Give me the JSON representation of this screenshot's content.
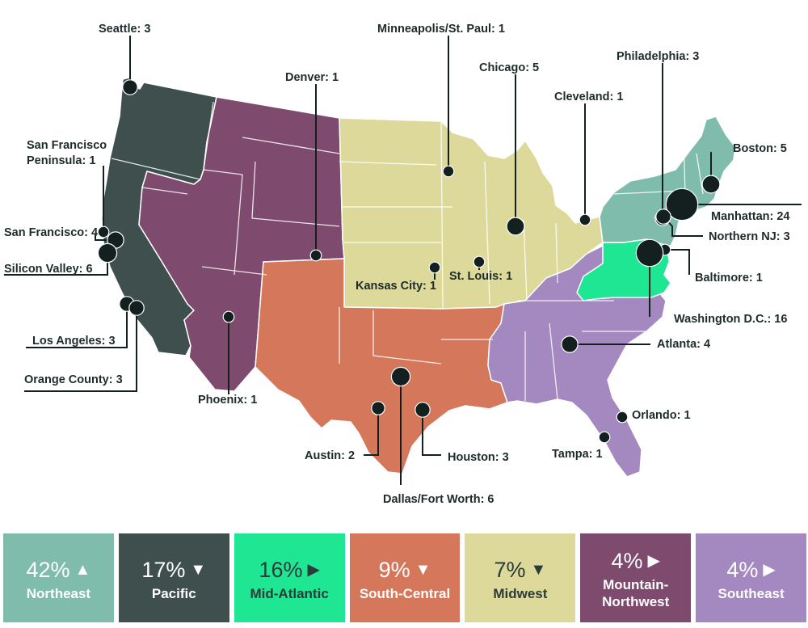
{
  "colors": {
    "northeast": "#7fbcab",
    "pacific": "#3e4f4d",
    "mid_atlantic": "#1ee692",
    "south_central": "#d4775b",
    "midwest": "#dcd99b",
    "mountain_northwest": "#7e4a6d",
    "southeast": "#a488c0",
    "marker": "#13201f"
  },
  "cities": [
    {
      "name": "Seattle: 3",
      "count": 3
    },
    {
      "name": "Minneapolis/St. Paul: 1",
      "count": 1
    },
    {
      "name": "Denver: 1",
      "count": 1
    },
    {
      "name": "Chicago: 5",
      "count": 5
    },
    {
      "name": "Philadelphia: 3",
      "count": 3
    },
    {
      "name": "Cleveland: 1",
      "count": 1
    },
    {
      "name": "San Francisco Peninsula: 1",
      "count": 1
    },
    {
      "name": "Boston: 5",
      "count": 5
    },
    {
      "name": "San Francisco: 4",
      "count": 4
    },
    {
      "name": "Manhattan: 24",
      "count": 24
    },
    {
      "name": "Northern NJ: 3",
      "count": 3
    },
    {
      "name": "Silicon Valley: 6",
      "count": 6
    },
    {
      "name": "Kansas City: 1",
      "count": 1
    },
    {
      "name": "St. Louis: 1",
      "count": 1
    },
    {
      "name": "Baltimore: 1",
      "count": 1
    },
    {
      "name": "Los Angeles: 3",
      "count": 3
    },
    {
      "name": "Washington D.C.: 16",
      "count": 16
    },
    {
      "name": "Atlanta: 4",
      "count": 4
    },
    {
      "name": "Orange County: 3",
      "count": 3
    },
    {
      "name": "Phoenix: 1",
      "count": 1
    },
    {
      "name": "Orlando: 1",
      "count": 1
    },
    {
      "name": "Austin: 2",
      "count": 2
    },
    {
      "name": "Houston: 3",
      "count": 3
    },
    {
      "name": "Tampa: 1",
      "count": 1
    },
    {
      "name": "Dallas/Fort Worth: 6",
      "count": 6
    }
  ],
  "legend": [
    {
      "pct": "42%",
      "arrow": "up",
      "arrow_glyph": "▲",
      "name": "Northeast",
      "color": "#7fbcab",
      "text": "light"
    },
    {
      "pct": "17%",
      "arrow": "down",
      "arrow_glyph": "▼",
      "name": "Pacific",
      "color": "#3e4f4d",
      "text": "light"
    },
    {
      "pct": "16%",
      "arrow": "right",
      "arrow_glyph": "▶",
      "name": "Mid-Atlantic",
      "color": "#1ee692",
      "text": "dark"
    },
    {
      "pct": "9%",
      "arrow": "down",
      "arrow_glyph": "▼",
      "name": "South-Central",
      "color": "#d4775b",
      "text": "light"
    },
    {
      "pct": "7%",
      "arrow": "down",
      "arrow_glyph": "▼",
      "name": "Midwest",
      "color": "#dcd99b",
      "text": "dark"
    },
    {
      "pct": "4%",
      "arrow": "right",
      "arrow_glyph": "▶",
      "name": "Mountain-Northwest",
      "name_lines": [
        "Mountain-",
        "Northwest"
      ],
      "color": "#7e4a6d",
      "text": "light"
    },
    {
      "pct": "4%",
      "arrow": "right",
      "arrow_glyph": "▶",
      "name": "Southeast",
      "color": "#a488c0",
      "text": "light"
    }
  ]
}
